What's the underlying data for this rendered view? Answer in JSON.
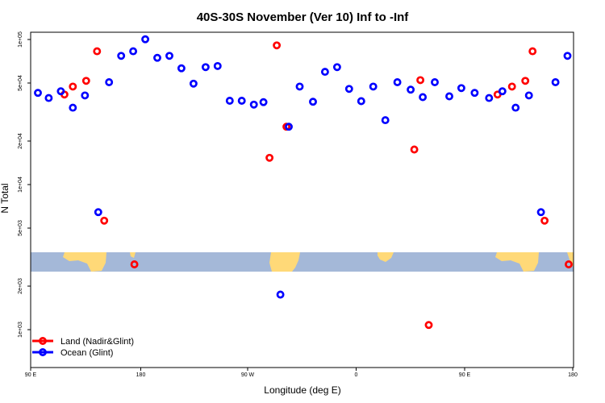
{
  "chart_data": {
    "type": "scatter",
    "title": "40S-30S November (Ver 10)   Inf to -Inf",
    "xlabel": "Longitude (deg E)",
    "ylabel": "N Total",
    "x_tick_labels": [
      "90 E",
      "180",
      "90 W",
      "0",
      "90 E",
      "180"
    ],
    "x_tick_values": [
      90,
      180,
      270,
      360,
      450,
      540
    ],
    "xlim": [
      90,
      540
    ],
    "y_scale": "log",
    "y_tick_labels": [
      "1e+03",
      "2e+03",
      "5e+03",
      "1e+04",
      "2e+04",
      "5e+04",
      "1e+05"
    ],
    "y_tick_values": [
      1000,
      2000,
      5000,
      10000,
      20000,
      50000,
      100000
    ],
    "ylim_log10": [
      2.8,
      5.0
    ],
    "legend_position": "bottom-left",
    "series": [
      {
        "name": "Land (Nadir&Glint)",
        "color": "#ff0000",
        "x": [
          118,
          125,
          136,
          145,
          151,
          176,
          288,
          294,
          302,
          408,
          413,
          420,
          477,
          489,
          500,
          506,
          516,
          536
        ],
        "y": [
          39000,
          44000,
          48000,
          75000,
          5800,
          3000,
          15000,
          82000,
          24000,
          17000,
          48500,
          1200,
          39000,
          44000,
          48000,
          75000,
          5800,
          3000
        ]
      },
      {
        "name": "Ocean (Glint)",
        "color": "#0000ff",
        "x": [
          96,
          105,
          115,
          125,
          135,
          146,
          155,
          165,
          175,
          185,
          195,
          205,
          215,
          225,
          235,
          245,
          255,
          265,
          275,
          283,
          297,
          304,
          313,
          324,
          334,
          344,
          354,
          364,
          374,
          384,
          394,
          405,
          415,
          425,
          437,
          447,
          458,
          470,
          481,
          492,
          503,
          513,
          525,
          535
        ],
        "y": [
          40000,
          37000,
          41000,
          32000,
          38500,
          6600,
          47000,
          70000,
          75000,
          90000,
          68000,
          70000,
          58000,
          46000,
          59000,
          60000,
          35500,
          35500,
          33500,
          34800,
          1900,
          24000,
          44000,
          35000,
          55000,
          59000,
          42500,
          35300,
          44000,
          26500,
          47000,
          42000,
          37500,
          47000,
          38000,
          43000,
          40000,
          37000,
          41000,
          32000,
          38500,
          6600,
          47000,
          70000
        ]
      }
    ]
  }
}
